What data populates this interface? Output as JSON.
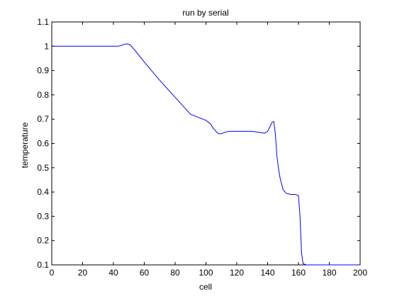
{
  "chart_data": {
    "type": "line",
    "title": "run by serial",
    "xlabel": "cell",
    "ylabel": "temperature",
    "xlim": [
      0,
      200
    ],
    "ylim": [
      0.1,
      1.1
    ],
    "xticks": [
      0,
      20,
      40,
      60,
      80,
      100,
      120,
      140,
      160,
      180,
      200
    ],
    "yticks": [
      0.1,
      0.2,
      0.3,
      0.4,
      0.5,
      0.6,
      0.7,
      0.8,
      0.9,
      1,
      1.1
    ],
    "grid": false,
    "line_color": "#0000ff",
    "series": [
      {
        "x": [
          0,
          10,
          20,
          30,
          40,
          43,
          45,
          47,
          49,
          51,
          55,
          60,
          70,
          80,
          90,
          100,
          103,
          105,
          108,
          110,
          112,
          115,
          120,
          130,
          138,
          140,
          142,
          143,
          144,
          145,
          146,
          147,
          148,
          150,
          152,
          155,
          158,
          160,
          161,
          162,
          163,
          165,
          170,
          180,
          190,
          200
        ],
        "y": [
          1.0,
          1.0,
          1.0,
          1.0,
          1.0,
          1.0,
          1.003,
          1.008,
          1.01,
          1.005,
          0.975,
          0.935,
          0.86,
          0.79,
          0.72,
          0.695,
          0.68,
          0.66,
          0.64,
          0.64,
          0.645,
          0.65,
          0.65,
          0.65,
          0.642,
          0.65,
          0.675,
          0.688,
          0.69,
          0.64,
          0.55,
          0.5,
          0.46,
          0.41,
          0.395,
          0.39,
          0.39,
          0.385,
          0.3,
          0.15,
          0.105,
          0.1,
          0.1,
          0.1,
          0.1,
          0.1
        ]
      }
    ]
  }
}
